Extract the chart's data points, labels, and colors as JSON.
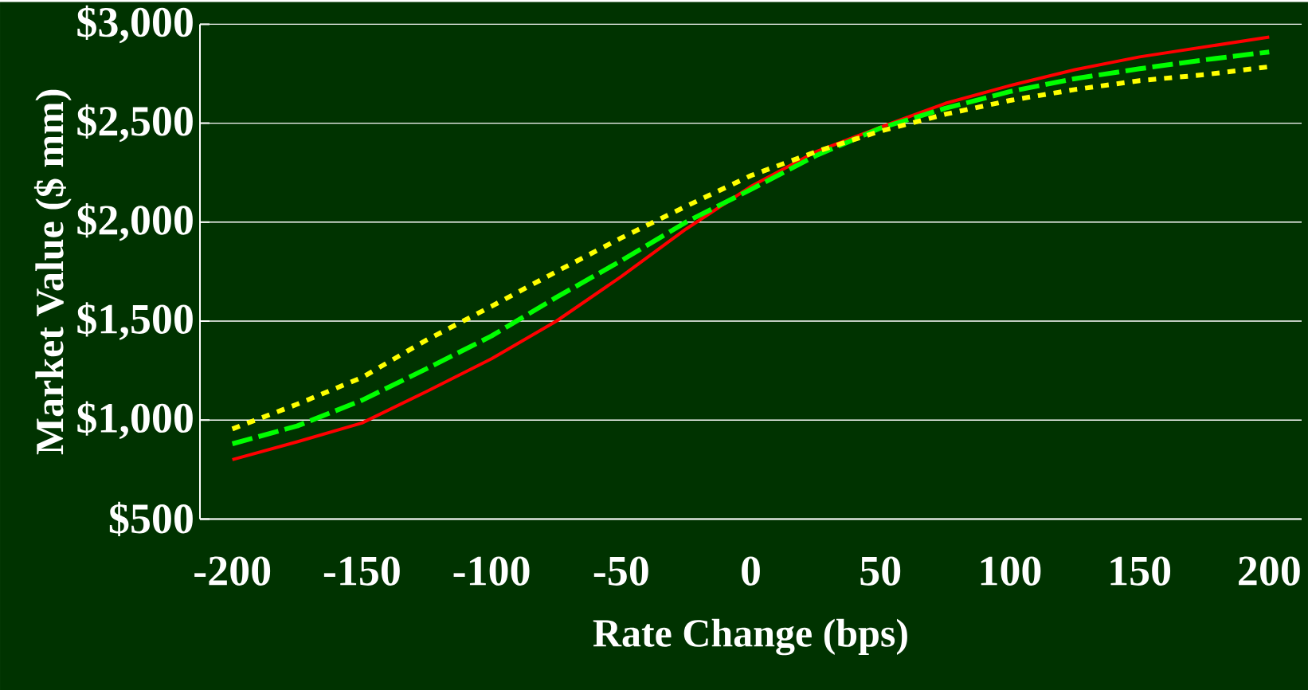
{
  "chart_data": {
    "type": "line",
    "xlabel": "Rate Change (bps)",
    "ylabel": "Market Value ($ mm)",
    "categories": [
      "-200",
      null,
      "-150",
      null,
      "-100",
      null,
      "-50",
      null,
      "0",
      null,
      "50",
      null,
      "100",
      null,
      "150",
      null,
      "200"
    ],
    "ylim": [
      500,
      3000
    ],
    "yticks": [
      {
        "value": 500,
        "label": "$500"
      },
      {
        "value": 1000,
        "label": "$1,000"
      },
      {
        "value": 1500,
        "label": "$1,500"
      },
      {
        "value": 2000,
        "label": "$2,000"
      },
      {
        "value": 2500,
        "label": "$2,500"
      },
      {
        "value": 3000,
        "label": "$3,000"
      }
    ],
    "grid": "y",
    "series": [
      {
        "color": "#ff0000",
        "line_style": "solid",
        "values": [
          800,
          890,
          985,
          1145,
          1310,
          1500,
          1725,
          1965,
          2180,
          2355,
          2480,
          2600,
          2690,
          2770,
          2835,
          2885,
          2935
        ]
      },
      {
        "color": "#00ff00",
        "line_style": "dashed",
        "values": [
          880,
          970,
          1100,
          1260,
          1425,
          1620,
          1805,
          2000,
          2165,
          2335,
          2475,
          2575,
          2660,
          2725,
          2775,
          2820,
          2860
        ]
      },
      {
        "color": "#ffff00",
        "line_style": "dotted",
        "values": [
          955,
          1080,
          1215,
          1405,
          1575,
          1750,
          1920,
          2080,
          2235,
          2355,
          2460,
          2545,
          2615,
          2670,
          2715,
          2745,
          2785
        ]
      }
    ]
  }
}
